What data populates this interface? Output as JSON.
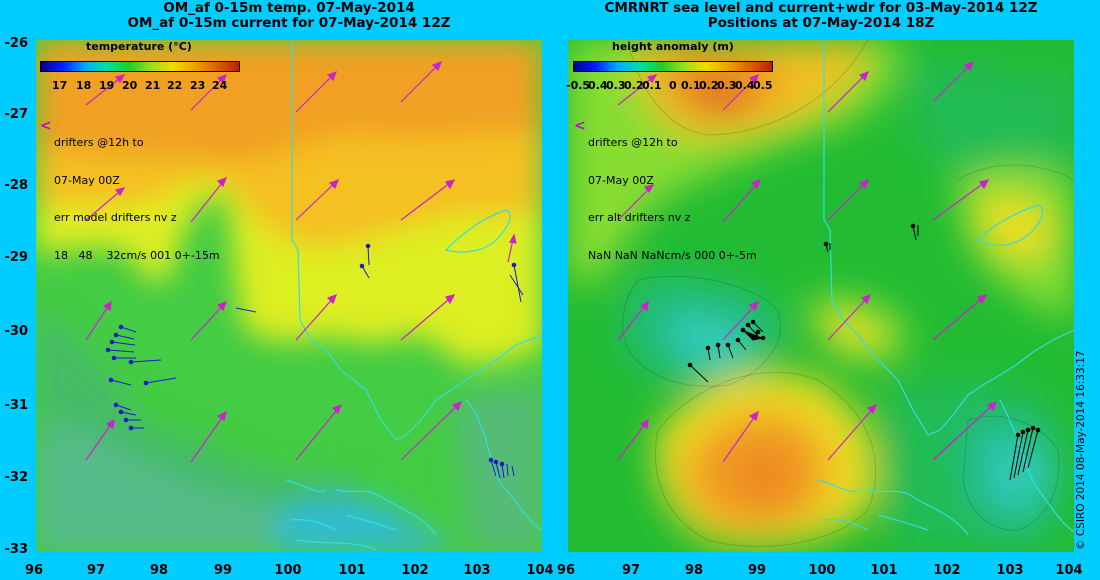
{
  "left": {
    "title_line1": "OM_af 0-15m temp. 07-May-2014",
    "title_line2": "OM_af 0-15m current for 07-May-2014 12Z",
    "legend_title": "temperature (°C)",
    "legend_ticks": [
      "17",
      "18",
      "19",
      "20",
      "21",
      "22",
      "23",
      "24"
    ],
    "info_lines": [
      "drifters @12h to",
      "07-May 00Z",
      "err model drifters nv z",
      "18   48    32cm/s 001 0+-15m"
    ],
    "arrow_char": "<"
  },
  "right": {
    "title_line1": "CMRNRT sea level and current+wdr for 03-May-2014 12Z",
    "title_line2": "Positions at 07-May-2014 18Z",
    "legend_title": "height anomaly (m)",
    "legend_ticks": [
      "-0.5",
      "0.4",
      "0.3",
      "0.2",
      "0.1",
      "0",
      "0.1",
      "0.2",
      "0.3",
      "0.4",
      "0.5"
    ],
    "info_lines": [
      "drifters @12h to",
      "07-May 00Z",
      "err alt drifters nv z",
      "NaN NaN NaNcm/s 000 0+-5m"
    ],
    "arrow_char": "<"
  },
  "axes": {
    "y_ticks": [
      "-26",
      "-27",
      "-28",
      "-29",
      "-30",
      "-31",
      "-32",
      "-33"
    ],
    "x_ticks": [
      "96",
      "97",
      "98",
      "99",
      "100",
      "101",
      "102",
      "103",
      "104"
    ]
  },
  "credit": "© CSIRO 2014   08-May-2014 16:33:17",
  "colors": {
    "background": "#00ccff",
    "vectors": "#cc22cc",
    "coast": "#33dddd",
    "drifter_left": "#1a1acc",
    "drifter_right": "#000000"
  }
}
